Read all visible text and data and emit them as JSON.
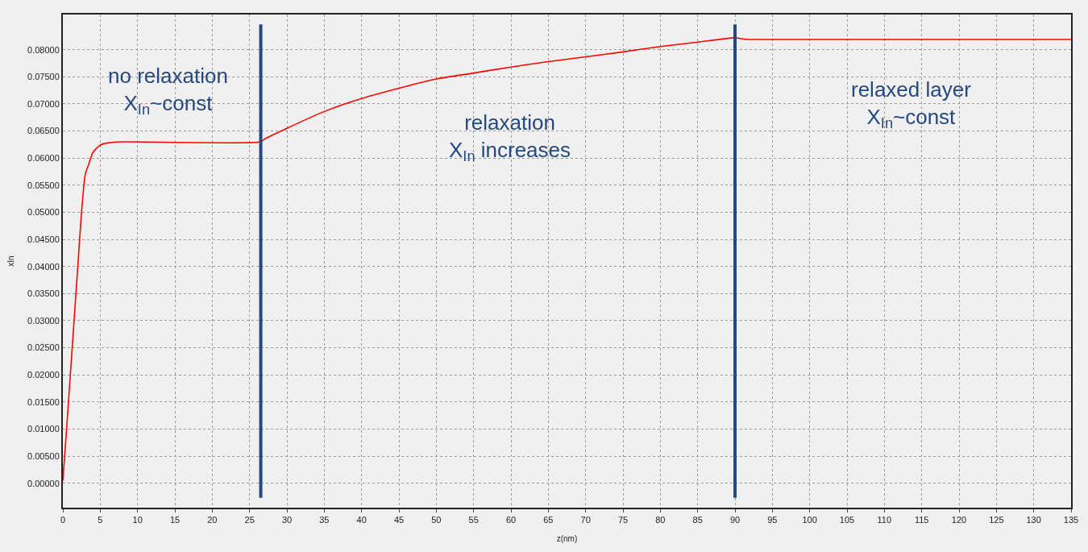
{
  "chart_data": {
    "type": "line",
    "xlabel": "z(nm)",
    "ylabel": "xIn",
    "x": [
      0,
      0.5,
      1,
      1.5,
      2,
      2.5,
      3,
      3.5,
      4,
      5,
      6,
      8,
      26.5,
      27,
      30,
      35,
      40,
      45,
      50,
      55,
      60,
      65,
      70,
      75,
      80,
      85,
      90,
      91,
      92,
      135
    ],
    "series": [
      {
        "color": "#ff0000",
        "values": [
          0.0005,
          0.01,
          0.02,
          0.03,
          0.04,
          0.05,
          0.057,
          0.059,
          0.061,
          0.0624,
          0.0628,
          0.063,
          0.063,
          0.0635,
          0.0655,
          0.0686,
          0.071,
          0.0729,
          0.0746,
          0.0757,
          0.0768,
          0.0778,
          0.0787,
          0.0796,
          0.0806,
          0.0814,
          0.0822,
          0.082,
          0.0819,
          0.0819
        ]
      }
    ],
    "xlim": [
      0,
      135
    ],
    "xticks": [
      0,
      5,
      10,
      15,
      20,
      25,
      30,
      35,
      40,
      45,
      50,
      55,
      60,
      65,
      70,
      75,
      80,
      85,
      90,
      95,
      100,
      105,
      110,
      115,
      120,
      125,
      130,
      135
    ],
    "ylim": [
      -0.0045,
      0.0865
    ],
    "yticks": [
      {
        "value": 0,
        "label": "0.00000"
      },
      {
        "value": 0.005,
        "label": "0.00500"
      },
      {
        "value": 0.01,
        "label": "0.01000"
      },
      {
        "value": 0.015,
        "label": "0.01500"
      },
      {
        "value": 0.02,
        "label": "0.02000"
      },
      {
        "value": 0.025,
        "label": "0.02500"
      },
      {
        "value": 0.03,
        "label": "0.03000"
      },
      {
        "value": 0.035,
        "label": "0.03500"
      },
      {
        "value": 0.04,
        "label": "0.04000"
      },
      {
        "value": 0.045,
        "label": "0.04500"
      },
      {
        "value": 0.05,
        "label": "0.05000"
      },
      {
        "value": 0.055,
        "label": "0.05500"
      },
      {
        "value": 0.06,
        "label": "0.06000"
      },
      {
        "value": 0.065,
        "label": "0.06500"
      },
      {
        "value": 0.07,
        "label": "0.07000"
      },
      {
        "value": 0.075,
        "label": "0.07500"
      },
      {
        "value": 0.08,
        "label": "0.08000"
      }
    ],
    "ref_lines": [
      {
        "axis": "x",
        "value": 26.5,
        "color": "#24497f"
      },
      {
        "axis": "x",
        "value": 90,
        "color": "#24497f"
      }
    ],
    "annotations": [
      "no relaxation\nX$_{In}$~const",
      "relaxation\nX$_{In}$ increases",
      "relaxed layer\nX$_{In}$~const"
    ],
    "grid": true,
    "marker": "none",
    "line_style": "solid"
  }
}
